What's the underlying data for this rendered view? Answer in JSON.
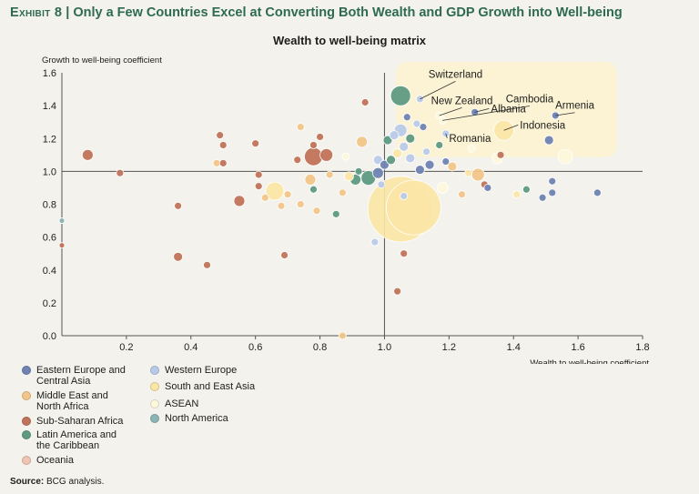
{
  "exhibit": {
    "number": "Exhibit 8",
    "separator": "|",
    "headline": "Only a Few Countries Excel at Converting Both Wealth and GDP Growth into Well-being"
  },
  "source": {
    "label": "Source:",
    "text": "BCG analysis."
  },
  "colors": {
    "Eastern Europe and Central Asia": "#6f83b3",
    "Middle East and North Africa": "#f2c58a",
    "Sub-Saharan Africa": "#c0735a",
    "Latin America and the Caribbean": "#5e9a82",
    "Oceania": "#f0c3b2",
    "Western Europe": "#b9c9e8",
    "South and East Asia": "#fbe6a6",
    "ASEAN": "#fdf8dc",
    "North America": "#8bb4b4"
  },
  "legend": [
    {
      "region": "Eastern Europe and Central Asia",
      "label": "Eastern Europe and\nCentral Asia"
    },
    {
      "region": "Middle East and North Africa",
      "label": "Middle East and\nNorth Africa"
    },
    {
      "region": "Sub-Saharan Africa",
      "label": "Sub-Saharan Africa"
    },
    {
      "region": "Latin America and the Caribbean",
      "label": "Latin America and\nthe Caribbean"
    },
    {
      "region": "Oceania",
      "label": "Oceania"
    },
    {
      "region": "Western Europe",
      "label": "Western Europe"
    },
    {
      "region": "South and East Asia",
      "label": "South and East Asia"
    },
    {
      "region": "ASEAN",
      "label": "ASEAN"
    },
    {
      "region": "North America",
      "label": "North America"
    }
  ],
  "chart_data": {
    "type": "scatter",
    "title": "Wealth to well-being matrix",
    "xlabel": "Wealth to well-being coefficient",
    "ylabel": "Growth to well-being coefficient",
    "xlim": [
      0,
      1.8
    ],
    "ylim": [
      0,
      1.6
    ],
    "xticks": [
      "0.2",
      "0.4",
      "0.6",
      "0.8",
      "1.0",
      "1.2",
      "1.4",
      "1.6",
      "1.8"
    ],
    "yticks": [
      "0.0",
      "0.2",
      "0.4",
      "0.6",
      "0.8",
      "1.0",
      "1.2",
      "1.4",
      "1.6"
    ],
    "reference_lines": {
      "x": 1.0,
      "y": 1.0
    },
    "highlight_region": {
      "x": [
        1.03,
        1.8
      ],
      "y": [
        1.12,
        1.6
      ]
    },
    "point_size_meaning": "relative bubble size (unitless)",
    "points": [
      {
        "x": 0.0,
        "y": 0.7,
        "r": 3,
        "region": "North America"
      },
      {
        "x": 0.0,
        "y": 0.55,
        "r": 3,
        "region": "Sub-Saharan Africa"
      },
      {
        "x": 0.08,
        "y": 1.1,
        "r": 6,
        "region": "Sub-Saharan Africa"
      },
      {
        "x": 0.18,
        "y": 0.99,
        "r": 4,
        "region": "Sub-Saharan Africa"
      },
      {
        "x": 0.36,
        "y": 0.79,
        "r": 4,
        "region": "Sub-Saharan Africa"
      },
      {
        "x": 0.36,
        "y": 0.48,
        "r": 5,
        "region": "Sub-Saharan Africa"
      },
      {
        "x": 0.45,
        "y": 0.43,
        "r": 4,
        "region": "Sub-Saharan Africa"
      },
      {
        "x": 0.48,
        "y": 1.05,
        "r": 4,
        "region": "Middle East and North Africa"
      },
      {
        "x": 0.49,
        "y": 1.22,
        "r": 4,
        "region": "Sub-Saharan Africa"
      },
      {
        "x": 0.5,
        "y": 1.16,
        "r": 4,
        "region": "Sub-Saharan Africa"
      },
      {
        "x": 0.5,
        "y": 1.05,
        "r": 4,
        "region": "Sub-Saharan Africa"
      },
      {
        "x": 0.55,
        "y": 0.82,
        "r": 6,
        "region": "Sub-Saharan Africa"
      },
      {
        "x": 0.6,
        "y": 1.17,
        "r": 4,
        "region": "Sub-Saharan Africa"
      },
      {
        "x": 0.61,
        "y": 0.98,
        "r": 4,
        "region": "Sub-Saharan Africa"
      },
      {
        "x": 0.61,
        "y": 0.91,
        "r": 4,
        "region": "Sub-Saharan Africa"
      },
      {
        "x": 0.63,
        "y": 0.84,
        "r": 4,
        "region": "Middle East and North Africa"
      },
      {
        "x": 0.66,
        "y": 0.88,
        "r": 10,
        "region": "South and East Asia"
      },
      {
        "x": 0.68,
        "y": 0.79,
        "r": 4,
        "region": "Middle East and North Africa"
      },
      {
        "x": 0.69,
        "y": 0.49,
        "r": 4,
        "region": "Sub-Saharan Africa"
      },
      {
        "x": 0.7,
        "y": 0.86,
        "r": 4,
        "region": "Middle East and North Africa"
      },
      {
        "x": 0.73,
        "y": 1.07,
        "r": 4,
        "region": "Sub-Saharan Africa"
      },
      {
        "x": 0.74,
        "y": 1.27,
        "r": 4,
        "region": "Middle East and North Africa"
      },
      {
        "x": 0.74,
        "y": 0.8,
        "r": 4,
        "region": "Middle East and North Africa"
      },
      {
        "x": 0.77,
        "y": 0.95,
        "r": 6,
        "region": "Middle East and North Africa"
      },
      {
        "x": 0.78,
        "y": 0.89,
        "r": 4,
        "region": "Latin America and the Caribbean"
      },
      {
        "x": 0.78,
        "y": 1.16,
        "r": 4,
        "region": "Sub-Saharan Africa"
      },
      {
        "x": 0.78,
        "y": 1.09,
        "r": 10,
        "region": "Sub-Saharan Africa"
      },
      {
        "x": 0.79,
        "y": 0.76,
        "r": 4,
        "region": "Middle East and North Africa"
      },
      {
        "x": 0.8,
        "y": 1.21,
        "r": 4,
        "region": "Sub-Saharan Africa"
      },
      {
        "x": 0.82,
        "y": 1.1,
        "r": 7,
        "region": "Sub-Saharan Africa"
      },
      {
        "x": 0.83,
        "y": 0.98,
        "r": 4,
        "region": "Middle East and North Africa"
      },
      {
        "x": 0.85,
        "y": 0.74,
        "r": 4,
        "region": "Latin America and the Caribbean"
      },
      {
        "x": 0.87,
        "y": 0.0,
        "r": 4,
        "region": "Middle East and North Africa"
      },
      {
        "x": 0.87,
        "y": 0.87,
        "r": 4,
        "region": "Middle East and North Africa"
      },
      {
        "x": 0.88,
        "y": 1.09,
        "r": 4,
        "region": "ASEAN"
      },
      {
        "x": 0.89,
        "y": 0.97,
        "r": 5,
        "region": "South and East Asia"
      },
      {
        "x": 0.91,
        "y": 0.95,
        "r": 6,
        "region": "Latin America and the Caribbean"
      },
      {
        "x": 0.92,
        "y": 1.0,
        "r": 4,
        "region": "Latin America and the Caribbean"
      },
      {
        "x": 0.93,
        "y": 1.18,
        "r": 6,
        "region": "Middle East and North Africa"
      },
      {
        "x": 0.94,
        "y": 1.42,
        "r": 4,
        "region": "Sub-Saharan Africa"
      },
      {
        "x": 0.95,
        "y": 0.96,
        "r": 8,
        "region": "Latin America and the Caribbean"
      },
      {
        "x": 0.97,
        "y": 0.57,
        "r": 4,
        "region": "Western Europe"
      },
      {
        "x": 0.98,
        "y": 1.07,
        "r": 5,
        "region": "Western Europe"
      },
      {
        "x": 0.98,
        "y": 0.99,
        "r": 6,
        "region": "Eastern Europe and Central Asia"
      },
      {
        "x": 0.99,
        "y": 0.92,
        "r": 4,
        "region": "Western Europe"
      },
      {
        "x": 1.0,
        "y": 1.04,
        "r": 5,
        "region": "Eastern Europe and Central Asia"
      },
      {
        "x": 1.01,
        "y": 1.19,
        "r": 5,
        "region": "Latin America and the Caribbean"
      },
      {
        "x": 1.02,
        "y": 1.07,
        "r": 5,
        "region": "Latin America and the Caribbean"
      },
      {
        "x": 1.03,
        "y": 1.22,
        "r": 5,
        "region": "Western Europe"
      },
      {
        "x": 1.04,
        "y": 1.11,
        "r": 5,
        "region": "South and East Asia"
      },
      {
        "x": 1.05,
        "y": 1.25,
        "r": 7,
        "region": "Western Europe"
      },
      {
        "x": 1.05,
        "y": 1.46,
        "r": 11,
        "region": "Latin America and the Caribbean"
      },
      {
        "x": 1.05,
        "y": 0.77,
        "r": 36,
        "region": "South and East Asia"
      },
      {
        "x": 1.06,
        "y": 1.15,
        "r": 5,
        "region": "Western Europe"
      },
      {
        "x": 1.06,
        "y": 0.85,
        "r": 4,
        "region": "Western Europe"
      },
      {
        "x": 1.06,
        "y": 0.5,
        "r": 4,
        "region": "Sub-Saharan Africa"
      },
      {
        "x": 1.04,
        "y": 0.27,
        "r": 4,
        "region": "Sub-Saharan Africa"
      },
      {
        "x": 1.07,
        "y": 1.33,
        "r": 4,
        "region": "Eastern Europe and Central Asia"
      },
      {
        "x": 1.08,
        "y": 1.08,
        "r": 5,
        "region": "Western Europe"
      },
      {
        "x": 1.08,
        "y": 1.2,
        "r": 5,
        "region": "Latin America and the Caribbean"
      },
      {
        "x": 1.09,
        "y": 0.78,
        "r": 30,
        "region": "South and East Asia"
      },
      {
        "x": 1.1,
        "y": 1.29,
        "r": 4,
        "region": "Western Europe"
      },
      {
        "x": 1.11,
        "y": 1.01,
        "r": 5,
        "region": "Eastern Europe and Central Asia"
      },
      {
        "x": 1.12,
        "y": 1.27,
        "r": 4,
        "region": "Eastern Europe and Central Asia"
      },
      {
        "x": 1.11,
        "y": 1.44,
        "r": 4,
        "region": "Western Europe"
      },
      {
        "x": 1.13,
        "y": 1.12,
        "r": 4,
        "region": "Western Europe"
      },
      {
        "x": 1.14,
        "y": 1.04,
        "r": 5,
        "region": "Eastern Europe and Central Asia"
      },
      {
        "x": 1.17,
        "y": 1.34,
        "r": 4,
        "region": "ASEAN"
      },
      {
        "x": 1.18,
        "y": 1.31,
        "r": 4,
        "region": "ASEAN"
      },
      {
        "x": 1.17,
        "y": 1.16,
        "r": 4,
        "region": "Latin America and the Caribbean"
      },
      {
        "x": 1.18,
        "y": 0.9,
        "r": 6,
        "region": "ASEAN"
      },
      {
        "x": 1.19,
        "y": 1.23,
        "r": 4,
        "region": "Western Europe"
      },
      {
        "x": 1.19,
        "y": 1.06,
        "r": 4,
        "region": "Eastern Europe and Central Asia"
      },
      {
        "x": 1.21,
        "y": 1.03,
        "r": 5,
        "region": "Middle East and North Africa"
      },
      {
        "x": 1.24,
        "y": 0.86,
        "r": 4,
        "region": "Middle East and North Africa"
      },
      {
        "x": 1.26,
        "y": 0.99,
        "r": 4,
        "region": "South and East Asia"
      },
      {
        "x": 1.27,
        "y": 1.14,
        "r": 4,
        "region": "ASEAN"
      },
      {
        "x": 1.28,
        "y": 1.36,
        "r": 4,
        "region": "Eastern Europe and Central Asia"
      },
      {
        "x": 1.29,
        "y": 0.98,
        "r": 7,
        "region": "Middle East and North Africa"
      },
      {
        "x": 1.31,
        "y": 0.92,
        "r": 4,
        "region": "Sub-Saharan Africa"
      },
      {
        "x": 1.32,
        "y": 0.9,
        "r": 4,
        "region": "Eastern Europe and Central Asia"
      },
      {
        "x": 1.35,
        "y": 1.08,
        "r": 6,
        "region": "ASEAN"
      },
      {
        "x": 1.36,
        "y": 1.1,
        "r": 4,
        "region": "Sub-Saharan Africa"
      },
      {
        "x": 1.37,
        "y": 1.25,
        "r": 11,
        "region": "South and East Asia"
      },
      {
        "x": 1.41,
        "y": 0.86,
        "r": 4,
        "region": "South and East Asia"
      },
      {
        "x": 1.44,
        "y": 0.89,
        "r": 4,
        "region": "Latin America and the Caribbean"
      },
      {
        "x": 1.49,
        "y": 0.84,
        "r": 4,
        "region": "Eastern Europe and Central Asia"
      },
      {
        "x": 1.51,
        "y": 1.19,
        "r": 5,
        "region": "Eastern Europe and Central Asia"
      },
      {
        "x": 1.52,
        "y": 0.94,
        "r": 4,
        "region": "Eastern Europe and Central Asia"
      },
      {
        "x": 1.52,
        "y": 0.87,
        "r": 4,
        "region": "Eastern Europe and Central Asia"
      },
      {
        "x": 1.53,
        "y": 1.34,
        "r": 4,
        "region": "Eastern Europe and Central Asia"
      },
      {
        "x": 1.56,
        "y": 1.09,
        "r": 8,
        "region": "ASEAN"
      },
      {
        "x": 1.66,
        "y": 0.87,
        "r": 4,
        "region": "Eastern Europe and Central Asia"
      }
    ],
    "annotations": [
      {
        "text": "Switzerland",
        "x": 1.11,
        "y": 1.44,
        "label_x": 1.22,
        "label_y": 1.57,
        "anchor": "middle"
      },
      {
        "text": "New Zealand",
        "x": 1.17,
        "y": 1.34,
        "label_x": 1.24,
        "label_y": 1.41,
        "anchor": "middle"
      },
      {
        "text": "Cambodia",
        "x": 1.18,
        "y": 1.31,
        "label_x": 1.45,
        "label_y": 1.42,
        "anchor": "middle"
      },
      {
        "text": "Albania",
        "x": 1.28,
        "y": 1.36,
        "label_x": 1.33,
        "label_y": 1.36,
        "anchor": "start"
      },
      {
        "text": "Armenia",
        "x": 1.53,
        "y": 1.34,
        "label_x": 1.59,
        "label_y": 1.38,
        "anchor": "middle"
      },
      {
        "text": "Indonesia",
        "x": 1.37,
        "y": 1.25,
        "label_x": 1.42,
        "label_y": 1.26,
        "anchor": "start"
      },
      {
        "text": "Romania",
        "x": 1.19,
        "y": 1.23,
        "label_x": 1.2,
        "label_y": 1.18,
        "anchor": "start"
      }
    ]
  }
}
